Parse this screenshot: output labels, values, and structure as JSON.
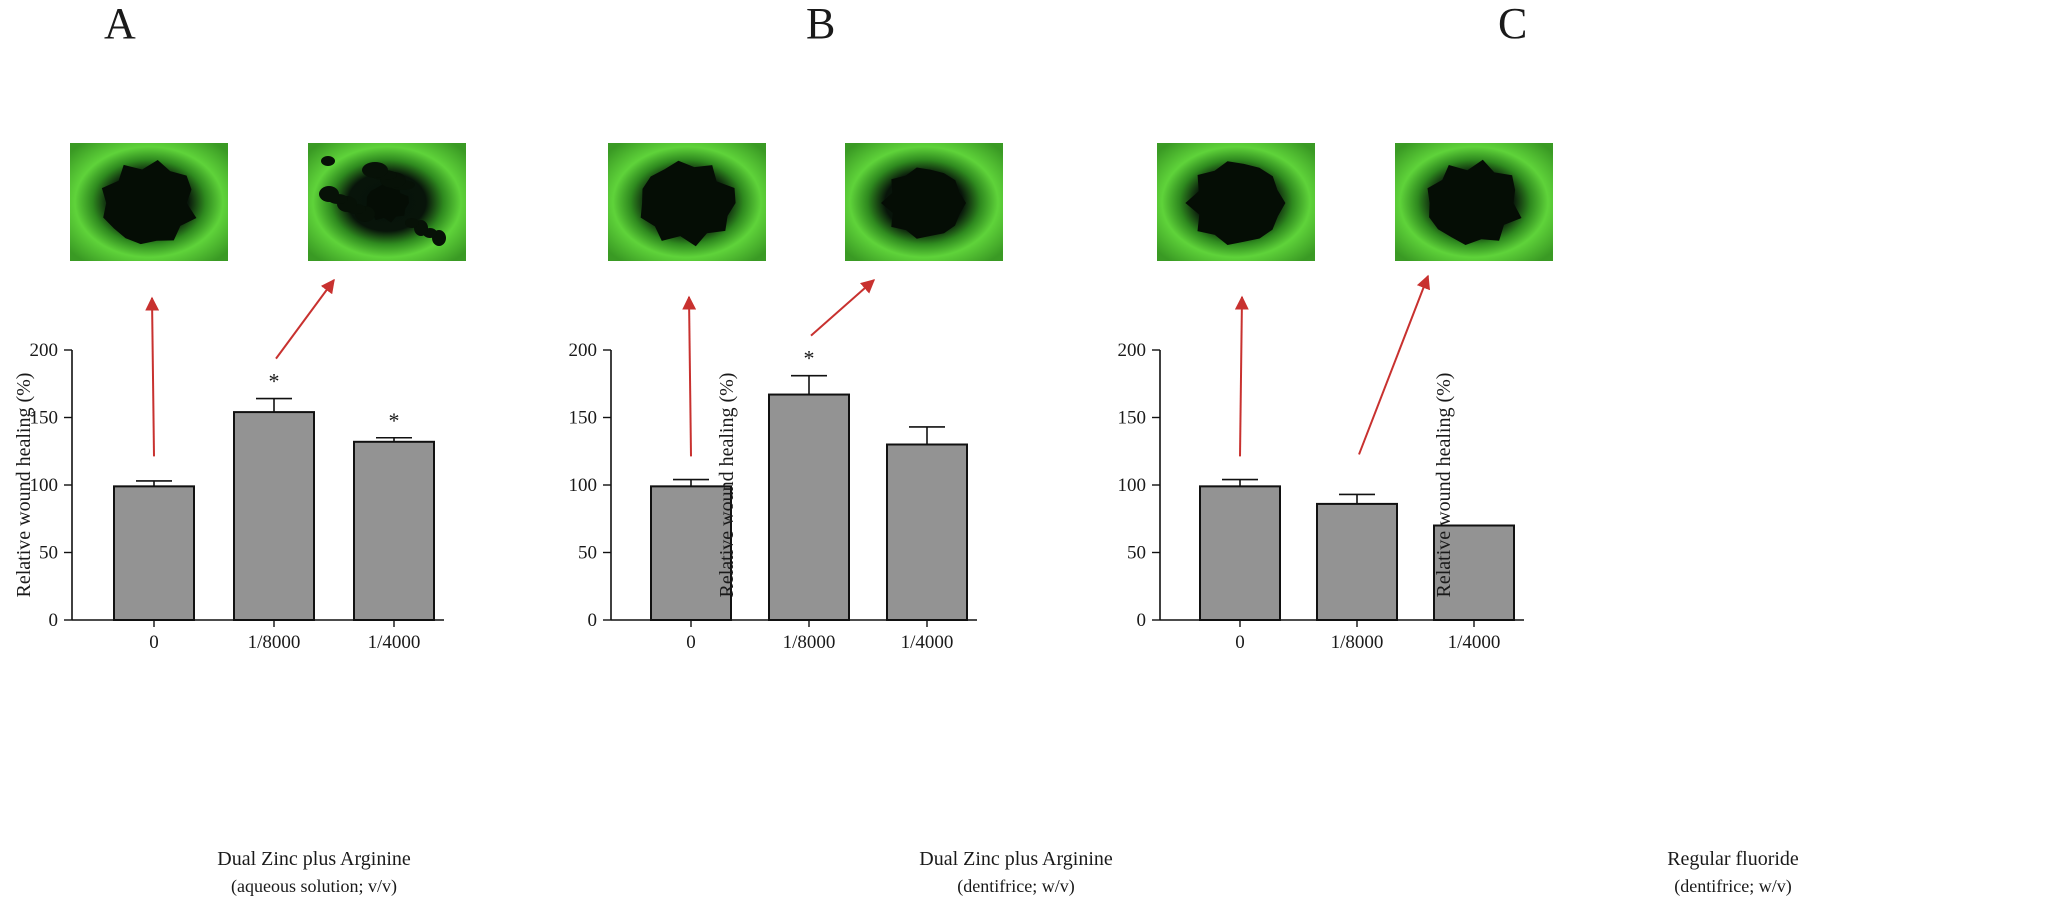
{
  "colors": {
    "bar_fill": "#939393",
    "bar_stroke": "#111111",
    "arrow": "#c8312f",
    "micro_bg": "#0a1a06",
    "micro_cells": "#5fd33a"
  },
  "chart_data": [
    {
      "type": "bar",
      "panel": "A",
      "categories": [
        "0",
        "1/8000",
        "1/4000"
      ],
      "values": [
        99,
        154,
        132
      ],
      "errors": [
        4,
        10,
        3
      ],
      "significance": [
        "",
        "*",
        "*"
      ],
      "ylabel": "Relative wound healing  (%)",
      "xlabel": "Dual Zinc plus Arginine",
      "xlabel_sub": "(aqueous solution; v/v)",
      "ylim": [
        0,
        200
      ],
      "yticks": [
        0,
        50,
        100,
        150,
        200
      ],
      "images": [
        {
          "category_index": 0,
          "icon": "microscopy-image-wound-open"
        },
        {
          "category_index": 1,
          "icon": "microscopy-image-wound-healed"
        }
      ]
    },
    {
      "type": "bar",
      "panel": "B",
      "categories": [
        "0",
        "1/8000",
        "1/4000"
      ],
      "values": [
        99,
        167,
        130
      ],
      "errors": [
        5,
        14,
        13
      ],
      "significance": [
        "",
        "*",
        ""
      ],
      "ylabel": "Relative wound healing  (%)",
      "xlabel": "Dual Zinc plus Arginine",
      "xlabel_sub": "(dentifrice; w/v)",
      "ylim": [
        0,
        200
      ],
      "yticks": [
        0,
        50,
        100,
        150,
        200
      ],
      "images": [
        {
          "category_index": 0,
          "icon": "microscopy-image-wound-open"
        },
        {
          "category_index": 1,
          "icon": "microscopy-image-wound-partial"
        }
      ]
    },
    {
      "type": "bar",
      "panel": "C",
      "categories": [
        "0",
        "1/8000",
        "1/4000"
      ],
      "values": [
        99,
        86,
        70
      ],
      "errors": [
        5,
        7,
        0
      ],
      "significance": [
        "",
        "",
        ""
      ],
      "ylabel": "Relative wound healing  (%)",
      "xlabel": "Regular fluoride",
      "xlabel_sub": "(dentifrice; w/v)",
      "ylim": [
        0,
        200
      ],
      "yticks": [
        0,
        50,
        100,
        150,
        200
      ],
      "images": [
        {
          "category_index": 0,
          "icon": "microscopy-image-wound-open"
        },
        {
          "category_index": 1,
          "icon": "microscopy-image-wound-open"
        }
      ]
    }
  ]
}
